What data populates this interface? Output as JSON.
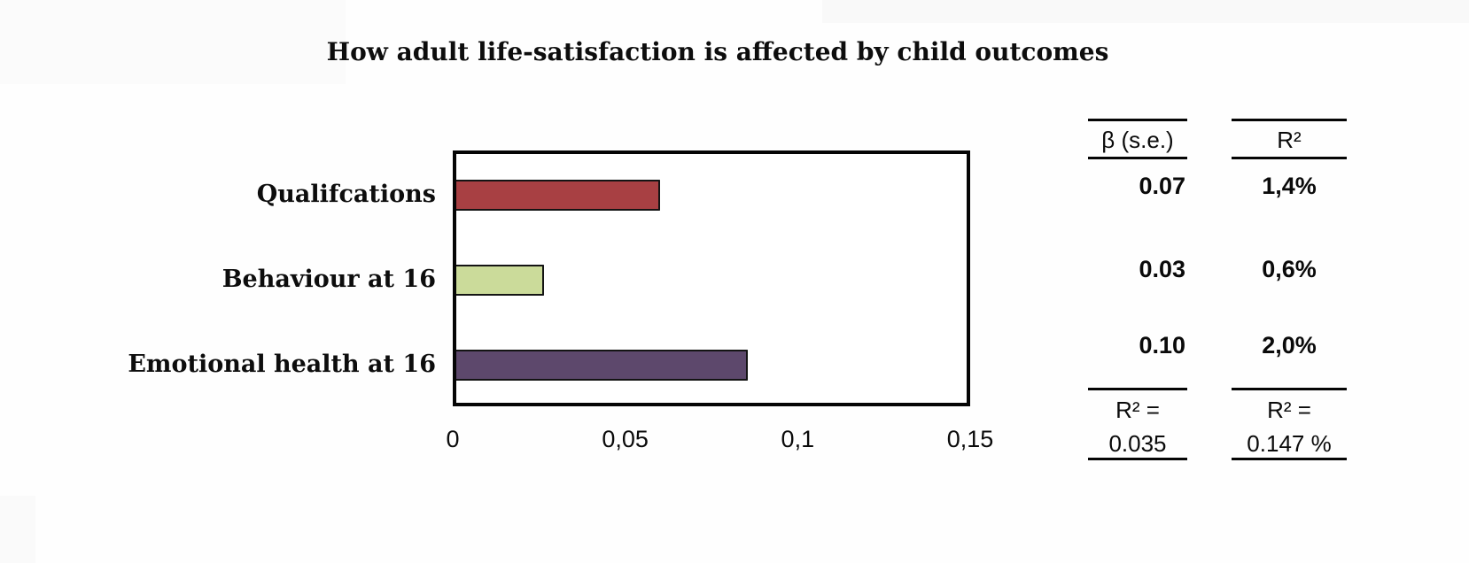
{
  "page": {
    "background": "#fefefe"
  },
  "chart_data": {
    "type": "bar",
    "orientation": "horizontal",
    "title": "How adult life-satisfaction is affected by child outcomes",
    "categories": [
      "Qualifcations",
      "Behaviour at 16",
      "Emotional health at 16"
    ],
    "values": [
      0.07,
      0.03,
      0.1
    ],
    "bar_colors": [
      "#A84043",
      "#CBDB9A",
      "#5D486C"
    ],
    "bar_border_color": "#141414",
    "xlabel": "",
    "ylabel": "",
    "xlim": [
      0,
      0.15
    ],
    "x_ticks": [
      {
        "label": "0",
        "value": 0
      },
      {
        "label": "0,05",
        "value": 0.05
      },
      {
        "label": "0,1",
        "value": 0.1
      },
      {
        "label": "0,15",
        "value": 0.15
      }
    ],
    "grid": false,
    "legend": "none",
    "bar_scale_max": 0.175
  },
  "stats_table": {
    "columns": [
      {
        "header": "β  (s.e.)",
        "values": [
          "0.07",
          "0.03",
          "0.10"
        ],
        "footer_label": "R² =",
        "footer_value": "0.035"
      },
      {
        "header": "R²",
        "values": [
          "1,4%",
          "0,6%",
          "2,0%"
        ],
        "footer_label": "R² =",
        "footer_value": "0.147 %"
      }
    ]
  }
}
